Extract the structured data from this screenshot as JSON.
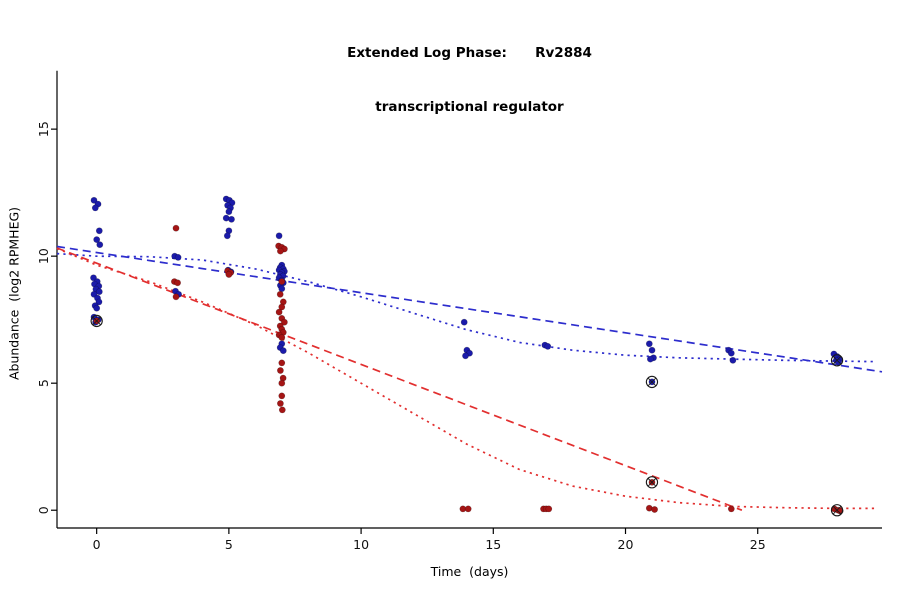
{
  "chart_data": {
    "type": "scatter",
    "title": "Extended Log Phase: Rv2884 transcriptional regulator",
    "title_line1": "Extended Log Phase:      Rv2884",
    "title_line2": "transcriptional regulator",
    "xlabel": "Time  (days)",
    "ylabel": "Abundance  (log2 RPMHEG)",
    "xlim": [
      -1.5,
      29.7
    ],
    "ylim": [
      -0.7,
      17.8
    ],
    "xticks": [
      0,
      5,
      10,
      15,
      20,
      25
    ],
    "yticks": [
      0,
      5,
      10,
      15
    ],
    "grid": false,
    "legend_position": "none",
    "colors": {
      "axis": "#000000",
      "tick_label": "#111111",
      "blue_points": "#1b1baa",
      "blue_line": "#2d2dcd",
      "red_points": "#a51515",
      "red_line": "#e22f2f",
      "circled": "#1a1a1a"
    },
    "series": [
      {
        "name": "blue-condition-points",
        "type": "points",
        "color_key": "blue_points",
        "points": [
          [
            -0.1,
            12.2
          ],
          [
            0.05,
            12.05
          ],
          [
            -0.05,
            11.9
          ],
          [
            0.1,
            11.0
          ],
          [
            0.0,
            10.65
          ],
          [
            0.12,
            10.45
          ],
          [
            -0.12,
            9.15
          ],
          [
            0.02,
            9.0
          ],
          [
            -0.08,
            8.9
          ],
          [
            0.08,
            8.82
          ],
          [
            -0.03,
            8.7
          ],
          [
            0.1,
            8.6
          ],
          [
            -0.1,
            8.5
          ],
          [
            0.03,
            8.35
          ],
          [
            0.09,
            8.2
          ],
          [
            -0.06,
            8.05
          ],
          [
            0.0,
            7.95
          ],
          [
            -0.1,
            7.6
          ],
          [
            0.06,
            7.5
          ],
          [
            -0.04,
            7.4
          ],
          [
            2.95,
            10.0
          ],
          [
            3.08,
            9.95
          ],
          [
            2.98,
            8.62
          ],
          [
            3.1,
            8.5
          ],
          [
            4.9,
            12.25
          ],
          [
            5.02,
            12.2
          ],
          [
            5.12,
            12.1
          ],
          [
            4.95,
            12.0
          ],
          [
            5.06,
            11.9
          ],
          [
            5.0,
            11.75
          ],
          [
            4.9,
            11.5
          ],
          [
            5.1,
            11.45
          ],
          [
            5.0,
            11.0
          ],
          [
            4.94,
            10.8
          ],
          [
            4.97,
            9.45
          ],
          [
            5.08,
            9.38
          ],
          [
            5.0,
            9.3
          ],
          [
            6.9,
            10.8
          ],
          [
            7.0,
            9.65
          ],
          [
            6.94,
            9.55
          ],
          [
            7.06,
            9.5
          ],
          [
            6.9,
            9.45
          ],
          [
            7.1,
            9.4
          ],
          [
            7.0,
            9.35
          ],
          [
            6.95,
            9.28
          ],
          [
            7.05,
            9.22
          ],
          [
            6.9,
            9.15
          ],
          [
            7.0,
            9.05
          ],
          [
            7.06,
            8.95
          ],
          [
            6.95,
            8.85
          ],
          [
            7.0,
            8.72
          ],
          [
            7.0,
            6.55
          ],
          [
            6.94,
            6.4
          ],
          [
            7.06,
            6.28
          ],
          [
            13.9,
            7.4
          ],
          [
            14.0,
            6.3
          ],
          [
            14.1,
            6.18
          ],
          [
            13.95,
            6.08
          ],
          [
            16.95,
            6.5
          ],
          [
            17.06,
            6.45
          ],
          [
            20.9,
            6.55
          ],
          [
            21.0,
            6.3
          ],
          [
            21.06,
            6.0
          ],
          [
            20.94,
            5.95
          ],
          [
            21.0,
            5.05
          ],
          [
            23.9,
            6.3
          ],
          [
            24.0,
            6.18
          ],
          [
            24.06,
            5.9
          ],
          [
            27.88,
            6.15
          ],
          [
            28.0,
            6.05
          ],
          [
            28.1,
            5.95
          ],
          [
            27.97,
            5.9
          ],
          [
            28.05,
            5.82
          ]
        ]
      },
      {
        "name": "red-condition-points",
        "type": "points",
        "color_key": "red_points",
        "points": [
          [
            0.0,
            7.45
          ],
          [
            3.0,
            11.1
          ],
          [
            2.94,
            9.0
          ],
          [
            3.06,
            8.95
          ],
          [
            3.0,
            8.4
          ],
          [
            4.95,
            9.42
          ],
          [
            5.06,
            9.35
          ],
          [
            5.0,
            9.28
          ],
          [
            6.88,
            10.4
          ],
          [
            7.0,
            10.35
          ],
          [
            7.1,
            10.28
          ],
          [
            6.95,
            10.2
          ],
          [
            7.0,
            9.0
          ],
          [
            6.94,
            8.5
          ],
          [
            7.06,
            8.2
          ],
          [
            7.0,
            8.0
          ],
          [
            6.9,
            7.8
          ],
          [
            7.0,
            7.55
          ],
          [
            7.1,
            7.4
          ],
          [
            6.94,
            7.25
          ],
          [
            7.0,
            7.12
          ],
          [
            7.06,
            7.0
          ],
          [
            6.9,
            6.9
          ],
          [
            7.0,
            6.8
          ],
          [
            7.0,
            5.8
          ],
          [
            6.95,
            5.5
          ],
          [
            7.05,
            5.2
          ],
          [
            7.0,
            5.0
          ],
          [
            7.0,
            4.5
          ],
          [
            6.95,
            4.2
          ],
          [
            7.02,
            3.95
          ],
          [
            13.85,
            0.05
          ],
          [
            14.05,
            0.05
          ],
          [
            16.9,
            0.05
          ],
          [
            17.0,
            0.05
          ],
          [
            17.1,
            0.05
          ],
          [
            21.0,
            1.1
          ],
          [
            20.9,
            0.08
          ],
          [
            21.1,
            0.03
          ],
          [
            24.0,
            0.05
          ],
          [
            27.9,
            0.05
          ],
          [
            28.04,
            0.0
          ],
          [
            28.12,
            -0.03
          ]
        ]
      }
    ],
    "curves": [
      {
        "name": "blue-dashed-fit",
        "color_key": "blue_line",
        "dash": "dashed",
        "points": [
          [
            -1.5,
            10.38
          ],
          [
            29.7,
            5.45
          ]
        ]
      },
      {
        "name": "blue-dotted-fit",
        "color_key": "blue_line",
        "dash": "dotted",
        "points": [
          [
            -1.5,
            10.1
          ],
          [
            0,
            10.0
          ],
          [
            2,
            9.98
          ],
          [
            4,
            9.85
          ],
          [
            6,
            9.5
          ],
          [
            8,
            9.0
          ],
          [
            10,
            8.4
          ],
          [
            12,
            7.75
          ],
          [
            14,
            7.1
          ],
          [
            16,
            6.6
          ],
          [
            18,
            6.3
          ],
          [
            20,
            6.1
          ],
          [
            22,
            6.0
          ],
          [
            24,
            5.95
          ],
          [
            26,
            5.9
          ],
          [
            28,
            5.87
          ],
          [
            29.4,
            5.85
          ]
        ]
      },
      {
        "name": "red-dashed-fit",
        "color_key": "red_line",
        "dash": "dashed",
        "points": [
          [
            -1.5,
            10.32
          ],
          [
            24.4,
            0.0
          ]
        ]
      },
      {
        "name": "red-dotted-fit",
        "color_key": "red_line",
        "dash": "dotted",
        "points": [
          [
            -1.5,
            10.3
          ],
          [
            0,
            9.65
          ],
          [
            2,
            9.0
          ],
          [
            4,
            8.2
          ],
          [
            6,
            7.3
          ],
          [
            8,
            6.2
          ],
          [
            10,
            5.0
          ],
          [
            12,
            3.8
          ],
          [
            14,
            2.6
          ],
          [
            16,
            1.6
          ],
          [
            18,
            0.95
          ],
          [
            20,
            0.55
          ],
          [
            22,
            0.3
          ],
          [
            24,
            0.15
          ],
          [
            26,
            0.1
          ],
          [
            28,
            0.07
          ],
          [
            29.4,
            0.07
          ]
        ]
      }
    ],
    "flagged_points": [
      [
        0,
        7.45
      ],
      [
        21,
        5.05
      ],
      [
        21,
        1.1
      ],
      [
        28,
        5.9
      ],
      [
        28,
        0.0
      ]
    ]
  }
}
